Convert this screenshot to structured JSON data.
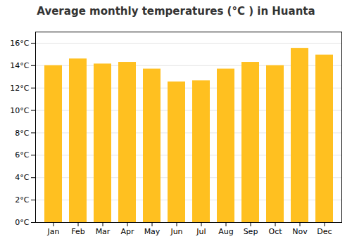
{
  "chart_data": {
    "type": "bar",
    "title": "Average monthly temperatures (°C ) in Huanta",
    "categories": [
      "Jan",
      "Feb",
      "Mar",
      "Apr",
      "May",
      "Jun",
      "Jul",
      "Aug",
      "Sep",
      "Oct",
      "Nov",
      "Dec"
    ],
    "values": [
      14.0,
      14.6,
      14.15,
      14.3,
      13.7,
      12.55,
      12.65,
      13.7,
      14.3,
      14.0,
      15.55,
      14.95
    ],
    "color": "#FFC020",
    "ylim": [
      0,
      17
    ],
    "yticks": [
      {
        "value": 0,
        "label": "0°C"
      },
      {
        "value": 2,
        "label": "2°C"
      },
      {
        "value": 4,
        "label": "4°C"
      },
      {
        "value": 6,
        "label": "6°C"
      },
      {
        "value": 8,
        "label": "8°C"
      },
      {
        "value": 10,
        "label": "10°C"
      },
      {
        "value": 12,
        "label": "12°C"
      },
      {
        "value": 14,
        "label": "14°C"
      },
      {
        "value": 16,
        "label": "16°C"
      }
    ],
    "grid": true
  }
}
